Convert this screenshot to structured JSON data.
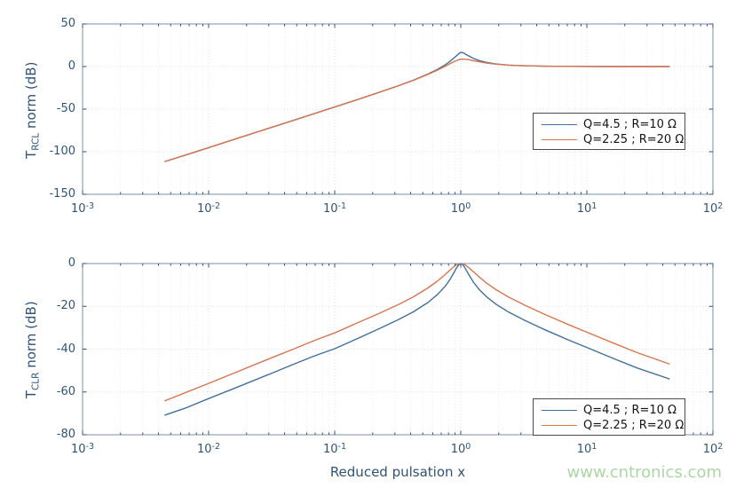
{
  "figure": {
    "background": "#ffffff",
    "axis_text_color": "#2f5478",
    "box_color": "#7c8fa8",
    "grid_major_color": "#c8d2e0",
    "grid_minor_color": "#dde3ee",
    "watermark": {
      "text": "www.cntronics.com",
      "color": "#abd7a3"
    }
  },
  "chart_data": [
    {
      "type": "line",
      "xscale": "log",
      "x_tick_base": "10",
      "x_tick_exponents": [
        -3,
        -2,
        -1,
        0,
        1,
        2
      ],
      "xlim_exponents": [
        -3,
        2
      ],
      "ylim": [
        -150,
        50
      ],
      "y_ticks": [
        50,
        0,
        -50,
        -100,
        -150
      ],
      "ylabel": {
        "prefix": "T",
        "sub": "RCL",
        "rest": " norm (dB)"
      },
      "xlabel": "",
      "grid": "on",
      "legend_position": "lower-right-inside",
      "legend": [
        {
          "label": "Q=4.5 ; R=10 Ω"
        },
        {
          "label": "Q=2.25 ; R=20 Ω"
        }
      ],
      "series": [
        {
          "name": "Q=4.5 ; R=10 Ω",
          "color": "#41709d",
          "points": [
            [
              0.0045,
              -111.5
            ],
            [
              0.0065,
              -104.1
            ],
            [
              0.01,
              -95.2
            ],
            [
              0.015,
              -86.8
            ],
            [
              0.022,
              -78.9
            ],
            [
              0.033,
              -70.5
            ],
            [
              0.047,
              -63.2
            ],
            [
              0.068,
              -55.5
            ],
            [
              0.1,
              -47.5
            ],
            [
              0.15,
              -39.0
            ],
            [
              0.22,
              -30.8
            ],
            [
              0.32,
              -22.5
            ],
            [
              0.42,
              -16.0
            ],
            [
              0.55,
              -8.8
            ],
            [
              0.65,
              -3.5
            ],
            [
              0.75,
              1.9
            ],
            [
              0.82,
              6.0
            ],
            [
              0.88,
              9.9
            ],
            [
              0.92,
              12.4
            ],
            [
              0.96,
              14.8
            ],
            [
              1.0,
              16.8
            ],
            [
              1.04,
              16.2
            ],
            [
              1.09,
              14.6
            ],
            [
              1.15,
              12.6
            ],
            [
              1.25,
              9.8
            ],
            [
              1.4,
              7.0
            ],
            [
              1.6,
              4.9
            ],
            [
              1.9,
              3.0
            ],
            [
              2.4,
              1.7
            ],
            [
              3.2,
              0.9
            ],
            [
              4.5,
              0.4
            ],
            [
              7,
              0.2
            ],
            [
              10,
              0.1
            ],
            [
              16,
              0
            ],
            [
              25,
              0
            ],
            [
              45,
              0
            ]
          ]
        },
        {
          "name": "Q=2.25 ; R=20 Ω",
          "color": "#d8764f",
          "points": [
            [
              0.0045,
              -111.5
            ],
            [
              0.0065,
              -104.1
            ],
            [
              0.01,
              -95.2
            ],
            [
              0.015,
              -86.8
            ],
            [
              0.022,
              -78.9
            ],
            [
              0.033,
              -70.5
            ],
            [
              0.047,
              -63.2
            ],
            [
              0.068,
              -55.5
            ],
            [
              0.1,
              -47.5
            ],
            [
              0.15,
              -39.0
            ],
            [
              0.22,
              -30.8
            ],
            [
              0.32,
              -22.6
            ],
            [
              0.42,
              -16.2
            ],
            [
              0.55,
              -9.2
            ],
            [
              0.65,
              -4.4
            ],
            [
              0.75,
              0.2
            ],
            [
              0.82,
              3.3
            ],
            [
              0.88,
              5.6
            ],
            [
              0.92,
              6.9
            ],
            [
              0.96,
              7.9
            ],
            [
              1.0,
              8.6
            ],
            [
              1.04,
              8.7
            ],
            [
              1.09,
              8.5
            ],
            [
              1.15,
              8.1
            ],
            [
              1.25,
              7.0
            ],
            [
              1.4,
              5.6
            ],
            [
              1.6,
              4.1
            ],
            [
              1.9,
              2.8
            ],
            [
              2.4,
              1.7
            ],
            [
              3.2,
              0.9
            ],
            [
              4.5,
              0.4
            ],
            [
              7,
              0.2
            ],
            [
              10,
              0.1
            ],
            [
              16,
              0
            ],
            [
              25,
              0
            ],
            [
              45,
              0
            ]
          ]
        }
      ]
    },
    {
      "type": "line",
      "xscale": "log",
      "x_tick_base": "10",
      "x_tick_exponents": [
        -3,
        -2,
        -1,
        0,
        1,
        2
      ],
      "xlim_exponents": [
        -3,
        2
      ],
      "ylim": [
        -80,
        0
      ],
      "y_ticks": [
        0,
        -20,
        -40,
        -60,
        -80
      ],
      "ylabel": {
        "prefix": "T",
        "sub": "CLR",
        "rest": " norm (dB)"
      },
      "xlabel": "Reduced pulsation x",
      "grid": "on",
      "legend_position": "lower-right-inside",
      "legend": [
        {
          "label": "Q=4.5 ; R=10 Ω"
        },
        {
          "label": "Q=2.25 ; R=20 Ω"
        }
      ],
      "series": [
        {
          "name": "Q=4.5 ; R=10 Ω",
          "color": "#41709d",
          "points": [
            [
              0.0045,
              -70.8
            ],
            [
              0.0065,
              -67.6
            ],
            [
              0.01,
              -63.1
            ],
            [
              0.015,
              -59.0
            ],
            [
              0.022,
              -55.0
            ],
            [
              0.033,
              -50.8
            ],
            [
              0.047,
              -47.1
            ],
            [
              0.068,
              -43.3
            ],
            [
              0.1,
              -39.8
            ],
            [
              0.15,
              -35.2
            ],
            [
              0.22,
              -30.7
            ],
            [
              0.32,
              -26.2
            ],
            [
              0.42,
              -22.6
            ],
            [
              0.55,
              -18.2
            ],
            [
              0.65,
              -14.6
            ],
            [
              0.75,
              -10.7
            ],
            [
              0.82,
              -7.5
            ],
            [
              0.88,
              -4.4
            ],
            [
              0.92,
              -2.3
            ],
            [
              0.96,
              -0.7
            ],
            [
              1.0,
              0
            ],
            [
              1.04,
              -0.6
            ],
            [
              1.09,
              -2.4
            ],
            [
              1.15,
              -4.9
            ],
            [
              1.25,
              -8.4
            ],
            [
              1.4,
              -12.2
            ],
            [
              1.6,
              -15.5
            ],
            [
              1.9,
              -19.0
            ],
            [
              2.4,
              -22.7
            ],
            [
              3.2,
              -26.5
            ],
            [
              4.5,
              -30.6
            ],
            [
              7,
              -35.5
            ],
            [
              10,
              -39.2
            ],
            [
              16,
              -44.2
            ],
            [
              25,
              -48.8
            ],
            [
              45,
              -53.9
            ]
          ]
        },
        {
          "name": "Q=2.25 ; R=20 Ω",
          "color": "#d8764f",
          "points": [
            [
              0.0045,
              -64.1
            ],
            [
              0.0065,
              -60.4
            ],
            [
              0.01,
              -56.0
            ],
            [
              0.015,
              -51.8
            ],
            [
              0.022,
              -47.8
            ],
            [
              0.033,
              -43.6
            ],
            [
              0.047,
              -40.0
            ],
            [
              0.068,
              -36.1
            ],
            [
              0.1,
              -32.4
            ],
            [
              0.15,
              -27.8
            ],
            [
              0.22,
              -23.6
            ],
            [
              0.32,
              -19.2
            ],
            [
              0.42,
              -15.6
            ],
            [
              0.55,
              -11.4
            ],
            [
              0.65,
              -8.3
            ],
            [
              0.75,
              -5.2
            ],
            [
              0.82,
              -3.1
            ],
            [
              0.88,
              -1.5
            ],
            [
              0.92,
              -0.7
            ],
            [
              0.96,
              -0.2
            ],
            [
              1.0,
              0
            ],
            [
              1.04,
              -0.2
            ],
            [
              1.09,
              -0.7
            ],
            [
              1.15,
              -1.8
            ],
            [
              1.25,
              -3.7
            ],
            [
              1.4,
              -6.3
            ],
            [
              1.6,
              -9.1
            ],
            [
              1.9,
              -12.2
            ],
            [
              2.4,
              -15.7
            ],
            [
              3.2,
              -19.4
            ],
            [
              4.5,
              -23.4
            ],
            [
              7,
              -28.3
            ],
            [
              10,
              -32.1
            ],
            [
              16,
              -37.0
            ],
            [
              25,
              -41.6
            ],
            [
              45,
              -46.9
            ]
          ]
        }
      ]
    }
  ]
}
